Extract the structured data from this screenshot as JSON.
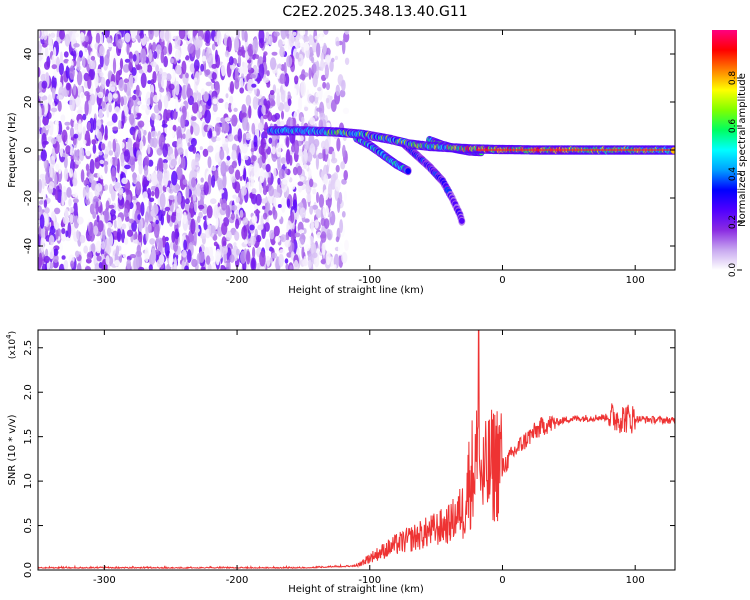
{
  "title": "C2E2.2025.348.13.40.G11",
  "chart_data": [
    {
      "type": "heatmap",
      "name": "spectrogram",
      "xlabel": "Height of straight line (km)",
      "ylabel": "Frequency (Hz)",
      "xlim": [
        -350,
        130
      ],
      "ylim": [
        -50,
        50
      ],
      "xticks": [
        -300,
        -200,
        -100,
        0,
        100
      ],
      "yticks": [
        -40,
        -20,
        0,
        20,
        40
      ],
      "colorbar": {
        "label": "Normalized spectral amplitude",
        "range": [
          0,
          1
        ],
        "ticks": [
          "0.0",
          "0.2",
          "0.4",
          "0.6",
          "0.8"
        ],
        "tick_values": [
          0.0,
          0.2,
          0.4,
          0.6,
          0.8
        ],
        "colors": [
          "#ffffff",
          "#c8a8f0",
          "#8a2be2",
          "#5000ff",
          "#0000ff",
          "#00a0ff",
          "#00ffff",
          "#00ff60",
          "#80ff00",
          "#ffff00",
          "#ff8000",
          "#ff0000",
          "#ff0080"
        ]
      },
      "features": {
        "noise_region_x": [
          -350,
          -130
        ],
        "main_track": [
          [
            -175,
            8
          ],
          [
            -150,
            8
          ],
          [
            -125,
            7.5
          ],
          [
            -105,
            6.5
          ],
          [
            -85,
            4.5
          ],
          [
            -70,
            2.5
          ],
          [
            -55,
            1.5
          ],
          [
            -40,
            1.0
          ],
          [
            -25,
            0.5
          ],
          [
            -10,
            0.3
          ],
          [
            0,
            0.2
          ],
          [
            30,
            0
          ],
          [
            60,
            0
          ],
          [
            90,
            0
          ],
          [
            130,
            0
          ]
        ],
        "branch_1": [
          [
            -110,
            5
          ],
          [
            -100,
            2
          ],
          [
            -90,
            -2
          ],
          [
            -80,
            -6
          ],
          [
            -70,
            -9
          ]
        ],
        "branch_2": [
          [
            -75,
            3
          ],
          [
            -65,
            -2
          ],
          [
            -55,
            -7
          ],
          [
            -45,
            -13
          ],
          [
            -38,
            -20
          ],
          [
            -32,
            -27
          ],
          [
            -30,
            -31
          ]
        ],
        "branch_3": [
          [
            -55,
            4
          ],
          [
            -45,
            2
          ],
          [
            -35,
            0.5
          ],
          [
            -25,
            -0.5
          ],
          [
            -15,
            -0.8
          ]
        ]
      }
    },
    {
      "type": "line",
      "name": "snr",
      "xlabel": "Height of straight line (km)",
      "ylabel": "SNR (10 * v/v)",
      "yscale_label": "(x10",
      "yscale_exp": "4",
      "xlim": [
        -350,
        130
      ],
      "ylim": [
        0,
        2.7
      ],
      "xticks": [
        -300,
        -200,
        -100,
        0,
        100
      ],
      "yticks": [
        "0.0",
        "0.5",
        "1.0",
        "1.5",
        "2.0",
        "2.5"
      ],
      "ytick_values": [
        0.0,
        0.5,
        1.0,
        1.5,
        2.0,
        2.5
      ],
      "color": "#ee3333",
      "trend": [
        [
          -350,
          0.02
        ],
        [
          -150,
          0.02
        ],
        [
          -110,
          0.04
        ],
        [
          -100,
          0.12
        ],
        [
          -80,
          0.25
        ],
        [
          -60,
          0.35
        ],
        [
          -40,
          0.45
        ],
        [
          -30,
          0.6
        ],
        [
          -25,
          0.9
        ],
        [
          -20,
          1.1
        ],
        [
          -15,
          0.9
        ],
        [
          -10,
          1.0
        ],
        [
          0,
          1.15
        ],
        [
          10,
          1.35
        ],
        [
          20,
          1.5
        ],
        [
          30,
          1.62
        ],
        [
          50,
          1.7
        ],
        [
          80,
          1.72
        ],
        [
          100,
          1.7
        ],
        [
          130,
          1.68
        ]
      ],
      "peak": {
        "x": -18,
        "y": 2.7
      }
    }
  ]
}
